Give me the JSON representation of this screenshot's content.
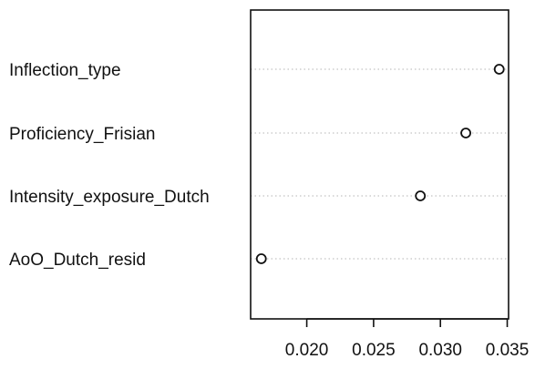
{
  "chart_data": {
    "type": "scatter",
    "title": "",
    "xlabel": "",
    "ylabel": "",
    "categories": [
      "Inflection_type",
      "Proficiency_Frisian",
      "Intensity_exposure_Dutch",
      "AoO_Dutch_resid"
    ],
    "values": [
      0.0344,
      0.0319,
      0.0285,
      0.0166
    ],
    "xlim": [
      0.0158,
      0.0351
    ],
    "xticks": [
      0.02,
      0.025,
      0.03,
      0.035
    ],
    "xtick_labels": [
      "0.020",
      "0.025",
      "0.030",
      "0.035"
    ],
    "grid": "dotted horizontal guide lines per category",
    "marker": "open circle",
    "legend": "none"
  }
}
